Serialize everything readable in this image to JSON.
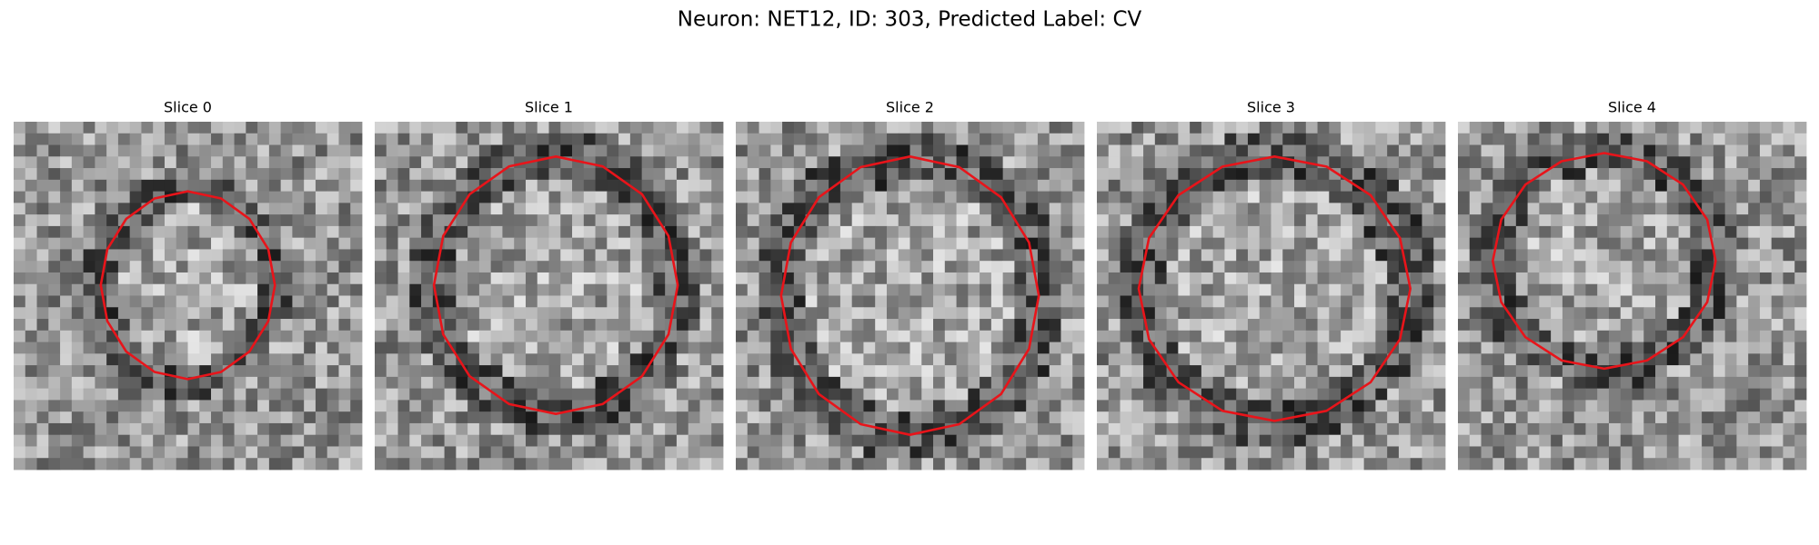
{
  "title": "Neuron: NET12, ID: 303, Predicted Label: CV",
  "panels": [
    {
      "title": "Slice 0"
    },
    {
      "title": "Slice 1"
    },
    {
      "title": "Slice 2"
    },
    {
      "title": "Slice 3"
    },
    {
      "title": "Slice 4"
    }
  ]
}
